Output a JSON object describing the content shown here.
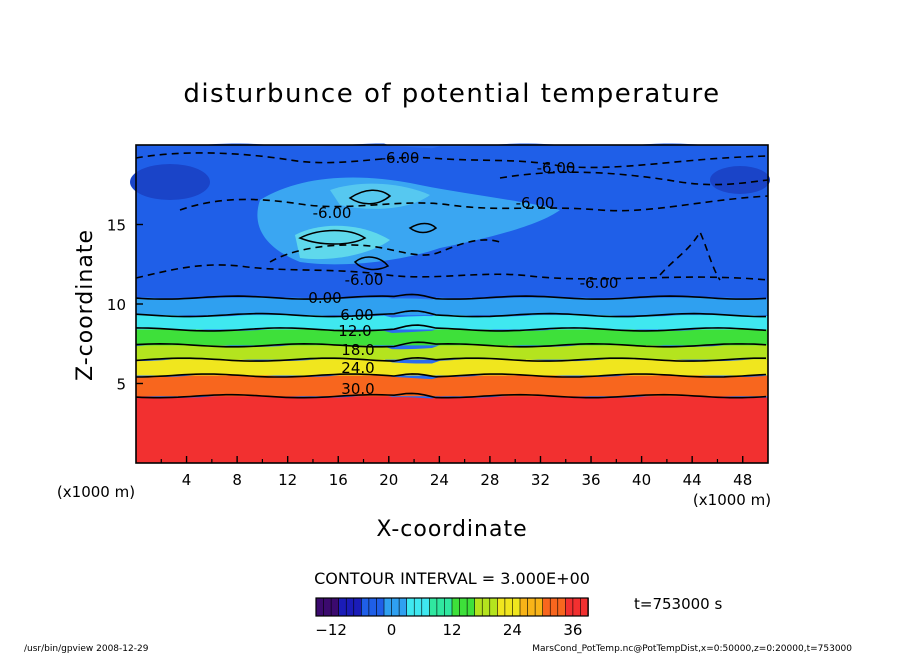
{
  "chart_data": {
    "type": "heatmap",
    "title": "disturbunce of potential temperature",
    "xlabel": "X-coordinate",
    "ylabel": "Z-coordinate",
    "x_unit_left": "(x1000 m)",
    "x_unit_right": "(x1000 m)",
    "xlim": [
      0,
      50
    ],
    "ylim": [
      0,
      20
    ],
    "x_ticks": [
      "4",
      "8",
      "12",
      "16",
      "20",
      "24",
      "28",
      "32",
      "36",
      "40",
      "44",
      "48"
    ],
    "y_ticks": [
      "5",
      "10",
      "15"
    ],
    "contour_interval_text": "CONTOUR INTERVAL = 3.000E+00",
    "time_text": "t=753000 s",
    "colorbar": {
      "min": -15,
      "max": 39,
      "tick_labels": [
        "-12",
        "0",
        "12",
        "24",
        "36"
      ],
      "colors": [
        "#3b0a6e",
        "#1a1cb8",
        "#1f5fe8",
        "#2fa0f0",
        "#3fe8f0",
        "#30e8a0",
        "#3ee03a",
        "#b4e41e",
        "#f0e61e",
        "#f8b418",
        "#f8661e",
        "#f23030"
      ]
    },
    "contour_labels": [
      "-6.00",
      "-6.00",
      "-6.00",
      "-6.00",
      "-6.00",
      "-6.00",
      "0.00",
      "6.00",
      "12.0",
      "18.0",
      "24.0",
      "30.0"
    ],
    "levels": [
      -6,
      0,
      6,
      12,
      18,
      24,
      30
    ],
    "bands": [
      {
        "z_from": 0,
        "z_to": 4.2,
        "value": 36
      },
      {
        "z_from": 4.2,
        "z_to": 5.5,
        "value": 30
      },
      {
        "z_from": 5.5,
        "z_to": 6.5,
        "value": 24
      },
      {
        "z_from": 6.5,
        "z_to": 7.4,
        "value": 18
      },
      {
        "z_from": 7.4,
        "z_to": 8.4,
        "value": 12
      },
      {
        "z_from": 8.4,
        "z_to": 9.3,
        "value": 6
      },
      {
        "z_from": 9.3,
        "z_to": 10.4,
        "value": 0
      },
      {
        "z_from": 10.4,
        "z_to": 20,
        "value": -6
      }
    ]
  },
  "footer": {
    "left": "/usr/bin/gpview   2008-12-29",
    "right": "MarsCond_PotTemp.nc@PotTempDist,x=0:50000,z=0:20000,t=753000"
  }
}
